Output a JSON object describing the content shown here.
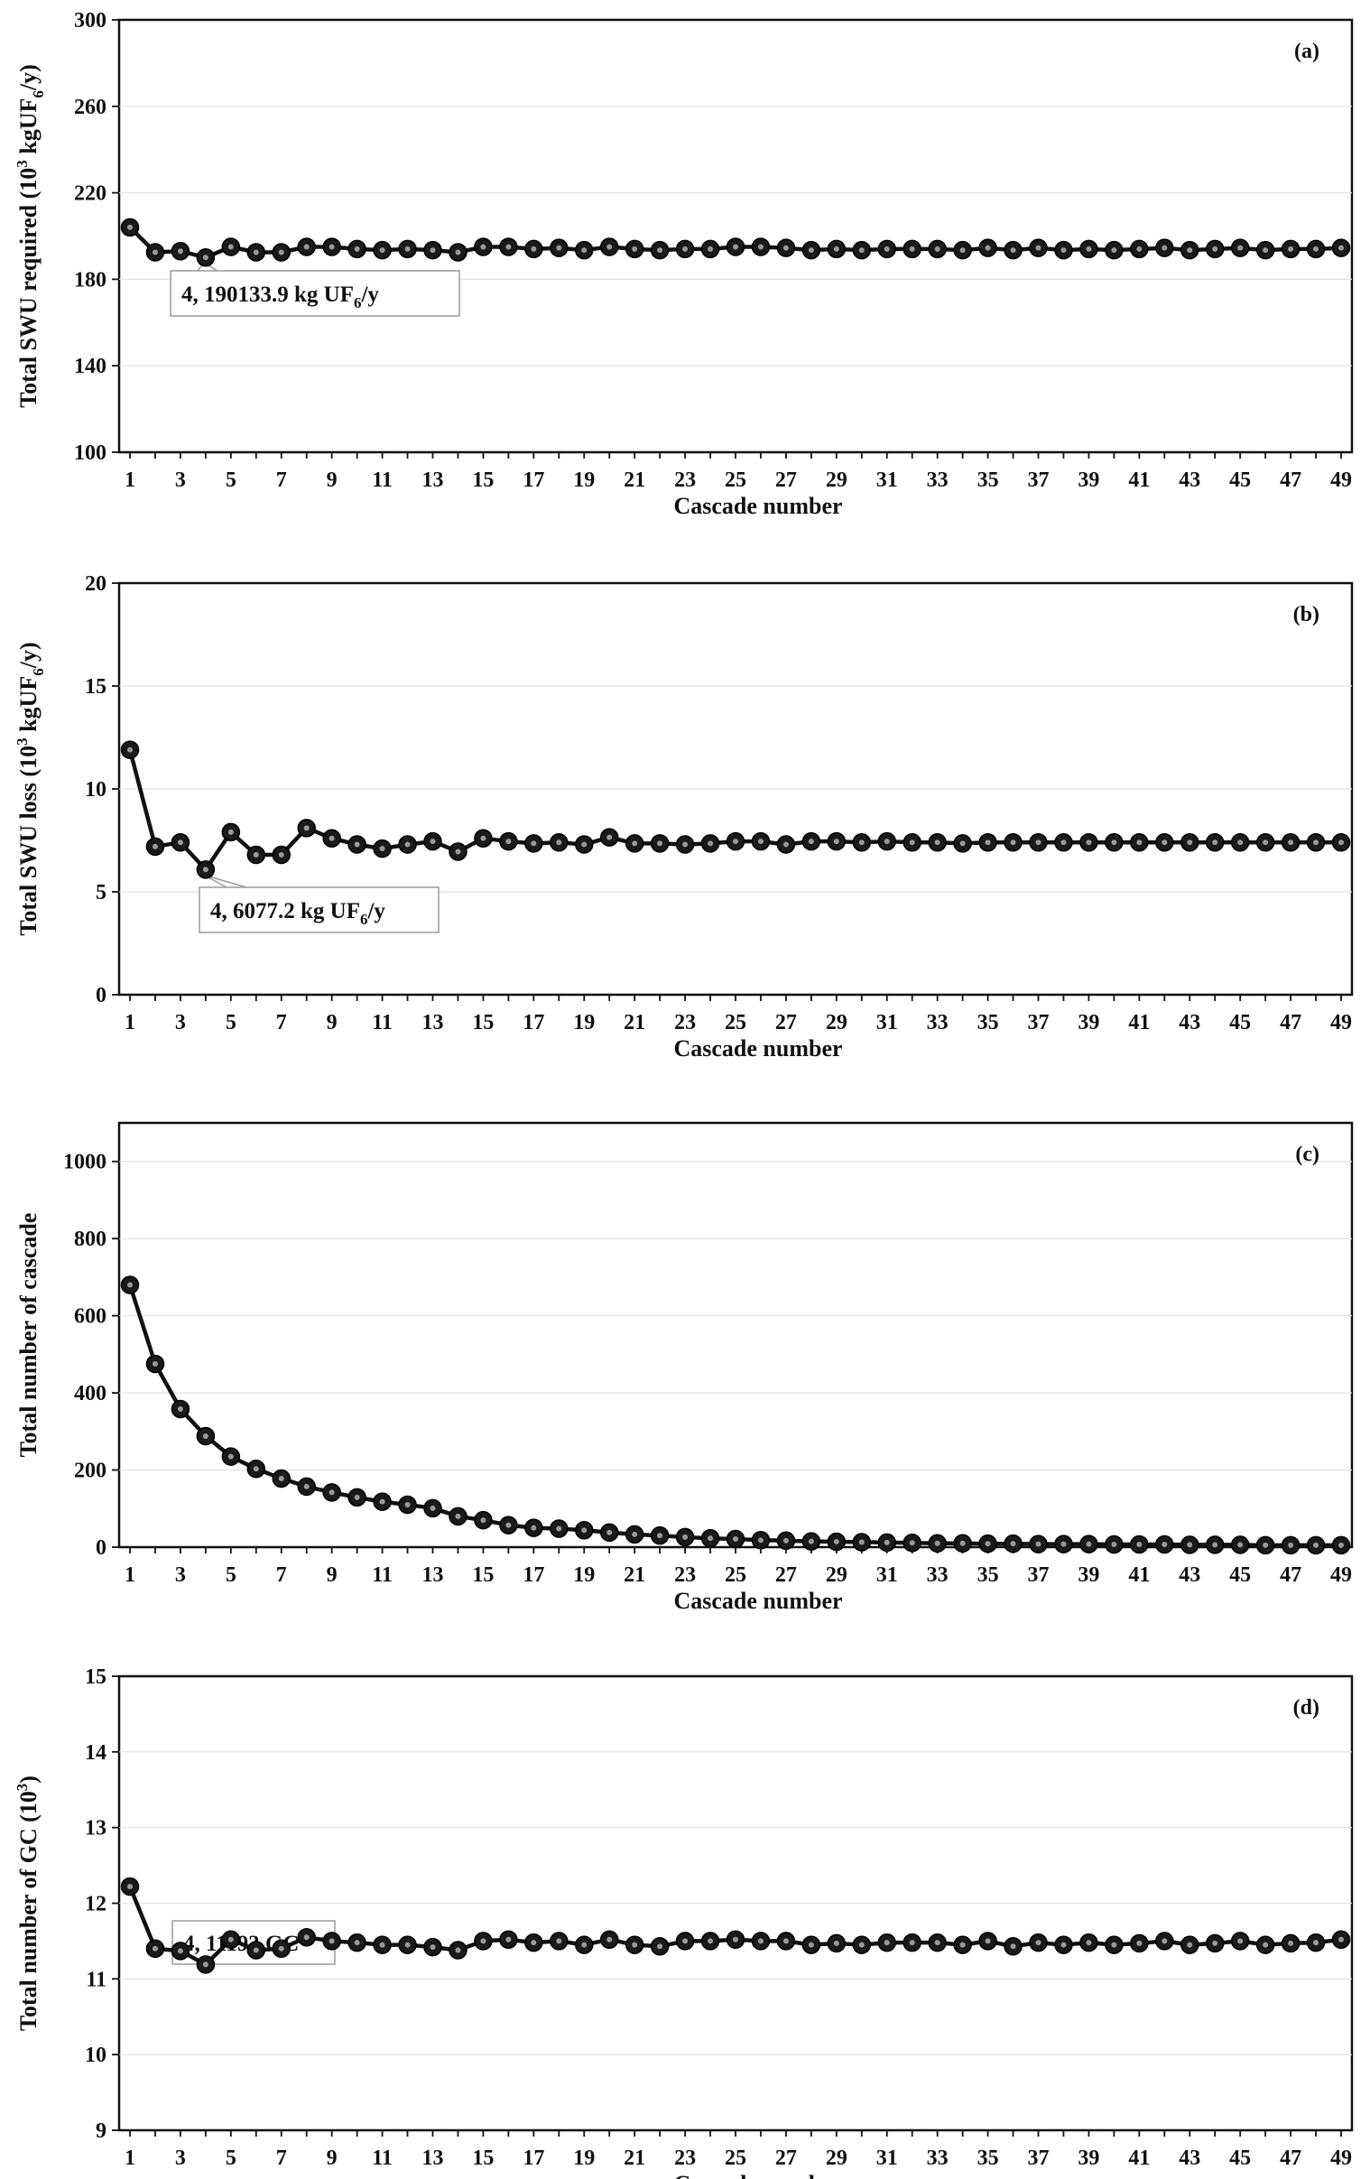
{
  "chart_data": [
    {
      "panel": "(a)",
      "type": "line",
      "title": "",
      "xlabel": "Cascade number",
      "ylabel_main": "Total SWU required (10",
      "ylabel_sup": "3",
      "ylabel_mid": " kgUF",
      "ylabel_sub": "6",
      "ylabel_end": "/y)",
      "ylim": [
        100,
        300
      ],
      "yticks": [
        100,
        140,
        180,
        220,
        260,
        300
      ],
      "x": [
        1,
        2,
        3,
        4,
        5,
        6,
        7,
        8,
        9,
        10,
        11,
        12,
        13,
        14,
        15,
        16,
        17,
        18,
        19,
        20,
        21,
        22,
        23,
        24,
        25,
        26,
        27,
        28,
        29,
        30,
        31,
        32,
        33,
        34,
        35,
        36,
        37,
        38,
        39,
        40,
        41,
        42,
        43,
        44,
        45,
        46,
        47,
        48,
        49
      ],
      "values": [
        204,
        192.5,
        193,
        190.1,
        195,
        192.5,
        192.5,
        195,
        195,
        194,
        193.5,
        194,
        193.5,
        192.5,
        195,
        195,
        194,
        194.5,
        193.5,
        195,
        194,
        193.5,
        194,
        194,
        195,
        195,
        194.5,
        193.5,
        194,
        193.5,
        194,
        194,
        194,
        193.5,
        194.5,
        193.5,
        194.5,
        193.5,
        194,
        193.5,
        194,
        194.5,
        193.5,
        194,
        194.5,
        193.5,
        194,
        194,
        194.5
      ],
      "annotation": {
        "x": 4,
        "label": "4, 190133.9 kg UF",
        "label_sub": "6",
        "label_end": "/y"
      }
    },
    {
      "panel": "(b)",
      "type": "line",
      "title": "",
      "xlabel": "Cascade number",
      "ylabel_main": "Total SWU loss (10",
      "ylabel_sup": "3",
      "ylabel_mid": " kgUF",
      "ylabel_sub": "6",
      "ylabel_end": "/y)",
      "ylim": [
        0,
        20
      ],
      "yticks": [
        0,
        5,
        10,
        15,
        20
      ],
      "x": [
        1,
        2,
        3,
        4,
        5,
        6,
        7,
        8,
        9,
        10,
        11,
        12,
        13,
        14,
        15,
        16,
        17,
        18,
        19,
        20,
        21,
        22,
        23,
        24,
        25,
        26,
        27,
        28,
        29,
        30,
        31,
        32,
        33,
        34,
        35,
        36,
        37,
        38,
        39,
        40,
        41,
        42,
        43,
        44,
        45,
        46,
        47,
        48,
        49
      ],
      "values": [
        11.9,
        7.2,
        7.4,
        6.08,
        7.9,
        6.8,
        6.8,
        8.1,
        7.6,
        7.3,
        7.1,
        7.3,
        7.45,
        6.95,
        7.6,
        7.45,
        7.35,
        7.4,
        7.3,
        7.65,
        7.35,
        7.35,
        7.3,
        7.35,
        7.45,
        7.45,
        7.3,
        7.45,
        7.45,
        7.4,
        7.45,
        7.4,
        7.4,
        7.35,
        7.4,
        7.4,
        7.4,
        7.4,
        7.4,
        7.4,
        7.4,
        7.4,
        7.4,
        7.4,
        7.4,
        7.4,
        7.4,
        7.4,
        7.4
      ],
      "annotation": {
        "x": 4,
        "label": "4, 6077.2 kg UF",
        "label_sub": "6",
        "label_end": "/y"
      }
    },
    {
      "panel": "(c)",
      "type": "line",
      "title": "",
      "xlabel": "Cascade number",
      "ylabel_main": "Total number of cascade",
      "ylabel_sup": "",
      "ylabel_mid": "",
      "ylabel_sub": "",
      "ylabel_end": "",
      "ylim": [
        0,
        1100
      ],
      "yticks": [
        0,
        200,
        400,
        600,
        800,
        1000
      ],
      "x": [
        1,
        2,
        3,
        4,
        5,
        6,
        7,
        8,
        9,
        10,
        11,
        12,
        13,
        14,
        15,
        16,
        17,
        18,
        19,
        20,
        21,
        22,
        23,
        24,
        25,
        26,
        27,
        28,
        29,
        30,
        31,
        32,
        33,
        34,
        35,
        36,
        37,
        38,
        39,
        40,
        41,
        42,
        43,
        44,
        45,
        46,
        47,
        48,
        49
      ],
      "values": [
        680,
        475,
        358,
        288,
        235,
        203,
        178,
        157,
        142,
        129,
        118,
        110,
        101,
        80,
        70,
        57,
        50,
        48,
        44,
        38,
        33,
        30,
        26,
        23,
        21,
        18,
        17,
        15,
        14,
        13,
        12,
        11,
        10,
        10,
        9,
        9,
        8,
        8,
        8,
        7,
        7,
        7,
        6,
        6,
        6,
        5,
        5,
        5,
        5
      ],
      "annotation": null
    },
    {
      "panel": "(d)",
      "type": "line",
      "title": "",
      "xlabel": "Cascade number",
      "ylabel_main": "Total number of GC (10",
      "ylabel_sup": "3",
      "ylabel_mid": ")",
      "ylabel_sub": "",
      "ylabel_end": "",
      "ylim": [
        9,
        15
      ],
      "yticks": [
        9,
        10,
        11,
        12,
        13,
        14,
        15
      ],
      "x": [
        1,
        2,
        3,
        4,
        5,
        6,
        7,
        8,
        9,
        10,
        11,
        12,
        13,
        14,
        15,
        16,
        17,
        18,
        19,
        20,
        21,
        22,
        23,
        24,
        25,
        26,
        27,
        28,
        29,
        30,
        31,
        32,
        33,
        34,
        35,
        36,
        37,
        38,
        39,
        40,
        41,
        42,
        43,
        44,
        45,
        46,
        47,
        48,
        49
      ],
      "values": [
        12.22,
        11.4,
        11.37,
        11.19,
        11.52,
        11.38,
        11.4,
        11.55,
        11.5,
        11.48,
        11.45,
        11.45,
        11.42,
        11.38,
        11.5,
        11.52,
        11.48,
        11.5,
        11.45,
        11.52,
        11.45,
        11.43,
        11.5,
        11.5,
        11.52,
        11.5,
        11.5,
        11.45,
        11.47,
        11.45,
        11.48,
        11.48,
        11.48,
        11.45,
        11.5,
        11.43,
        11.48,
        11.45,
        11.48,
        11.45,
        11.47,
        11.5,
        11.45,
        11.47,
        11.5,
        11.45,
        11.47,
        11.48,
        11.52
      ],
      "annotation": {
        "x": 4,
        "label": "4, 11193 GC",
        "label_sub": "",
        "label_end": ""
      }
    }
  ]
}
